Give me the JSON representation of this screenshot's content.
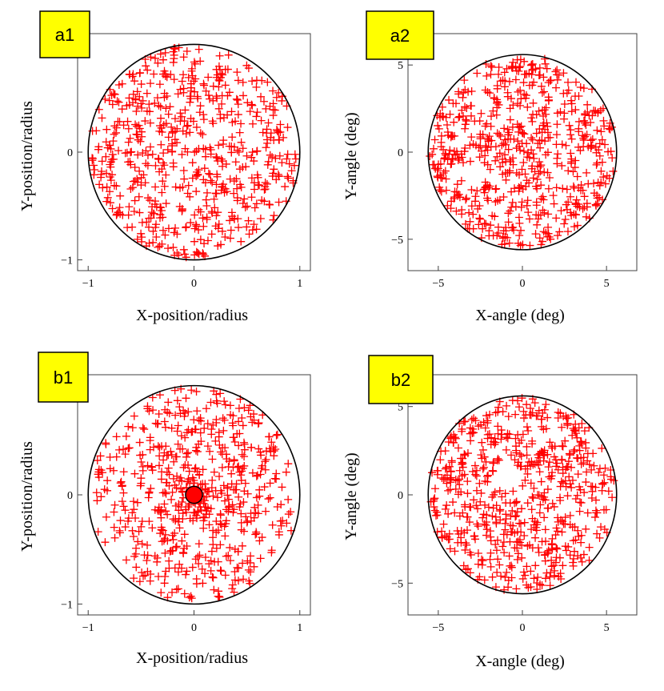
{
  "colors": {
    "marker": "#ff0000",
    "circle": "#000000",
    "axis": "#404040",
    "tag_fill": "#ffff00",
    "tag_border": "#000000"
  },
  "chart_data": [
    {
      "id": "a1",
      "type": "scatter",
      "panel_label": "a1",
      "xlabel": "X-position/radius",
      "ylabel": "Y-position/radius",
      "xlim": [
        -1.1,
        1.1
      ],
      "ylim": [
        -1.1,
        1.1
      ],
      "xticks": [
        -1,
        0,
        1
      ],
      "xtick_labels": [
        "−1",
        "0",
        "1"
      ],
      "yticks": [
        -1,
        0
      ],
      "ytick_labels": [
        "−1",
        "0"
      ],
      "boundary_radius": 1.0,
      "marker": "+",
      "n_points": 620,
      "distribution": "uniform",
      "seed": 11
    },
    {
      "id": "a2",
      "type": "scatter",
      "panel_label": "a2",
      "xlabel": "X-angle  (deg)",
      "ylabel": "Y-angle  (deg)",
      "xlim": [
        -6.8,
        6.8
      ],
      "ylim": [
        -6.8,
        6.8
      ],
      "xticks": [
        -5,
        0,
        5
      ],
      "xtick_labels": [
        "−5",
        "0",
        "5"
      ],
      "yticks": [
        -5,
        0,
        5
      ],
      "ytick_labels": [
        "−5",
        "0",
        "5"
      ],
      "boundary_radius": 5.6,
      "marker": "+",
      "n_points": 620,
      "distribution": "uniform",
      "seed": 23
    },
    {
      "id": "b1",
      "type": "scatter",
      "panel_label": "b1",
      "xlabel": "X-position/radius",
      "ylabel": "Y-position/radius",
      "xlim": [
        -1.1,
        1.1
      ],
      "ylim": [
        -1.1,
        1.1
      ],
      "xticks": [
        -1,
        0,
        1
      ],
      "xtick_labels": [
        "−1",
        "0",
        "1"
      ],
      "yticks": [
        -1,
        0
      ],
      "ytick_labels": [
        "−1",
        "0"
      ],
      "boundary_radius": 1.0,
      "marker": "+",
      "n_points": 620,
      "distribution": "center-concentrated",
      "seed": 37,
      "center_marker": {
        "x": 0,
        "y": 0,
        "radius": 0.08
      }
    },
    {
      "id": "b2",
      "type": "scatter",
      "panel_label": "b2",
      "xlabel": "X-angle  (deg)",
      "ylabel": "Y-angle  (deg)",
      "xlim": [
        -6.8,
        6.8
      ],
      "ylim": [
        -6.8,
        6.8
      ],
      "xticks": [
        -5,
        0,
        5
      ],
      "xtick_labels": [
        "−5",
        "0",
        "5"
      ],
      "yticks": [
        -5,
        0,
        5
      ],
      "ytick_labels": [
        "−5",
        "0",
        "5"
      ],
      "boundary_radius": 5.6,
      "marker": "+",
      "n_points": 620,
      "distribution": "uniform",
      "seed": 53
    }
  ]
}
